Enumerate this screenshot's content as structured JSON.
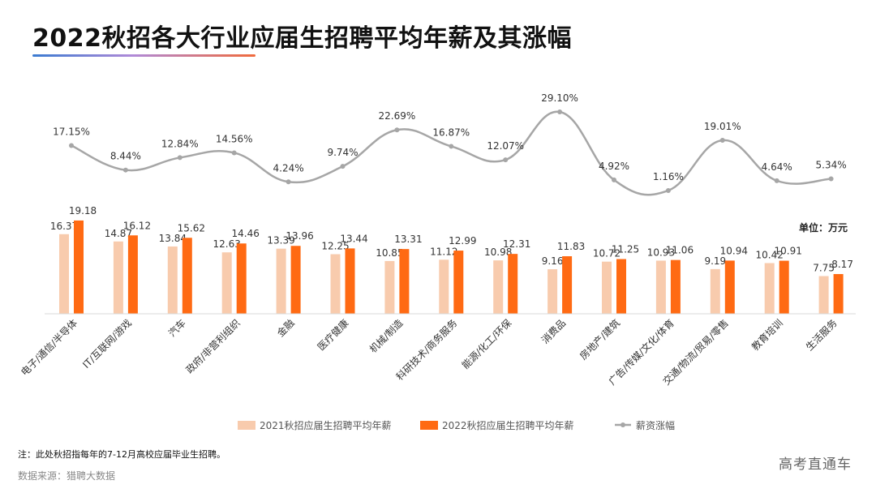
{
  "title": "2022秋招各大行业应届生招聘平均年薪及其涨幅",
  "note": "注：此处秋招指每年的7-12月高校应届毕业生招聘。",
  "source": "数据来源：猎聘大数据",
  "watermark": "高考直通车",
  "unit_label": "单位：万元",
  "colors": {
    "series_2021": "#f8cbad",
    "series_2022": "#ff6a13",
    "growth_line": "#a6a6a6",
    "text": "#333333"
  },
  "chart_data": {
    "type": "bar",
    "categories": [
      "电子/通信/半导体",
      "IT/互联网/游戏",
      "汽车",
      "政府/非营利组织",
      "金融",
      "医疗健康",
      "机械/制造",
      "科研技术/商务服务",
      "能源/化工/环保",
      "消费品",
      "房地产/建筑",
      "广告/传媒/文化/体育",
      "交通/物流/贸易/零售",
      "教育培训",
      "生活服务"
    ],
    "series": [
      {
        "name": "2021秋招应届生招聘平均年薪",
        "type": "bar",
        "values": [
          16.37,
          14.87,
          13.84,
          12.63,
          13.39,
          12.25,
          10.85,
          11.12,
          10.98,
          9.16,
          10.72,
          10.93,
          9.19,
          10.42,
          7.75
        ],
        "labels": [
          "16.37",
          "14.87",
          "13.84",
          "12.63",
          "13.39",
          "12.25",
          "10.85",
          "11.12",
          "10.98",
          "9.16",
          "10.72",
          "10.93",
          "9.19",
          "10.42",
          "7.75"
        ]
      },
      {
        "name": "2022秋招应届生招聘平均年薪",
        "type": "bar",
        "values": [
          19.18,
          16.12,
          15.62,
          14.46,
          13.96,
          13.44,
          13.31,
          12.99,
          12.31,
          11.83,
          11.25,
          11.06,
          10.94,
          10.91,
          8.17
        ],
        "labels": [
          "19.18",
          "16.12",
          "15.62",
          "14.46",
          "13.96",
          "13.44",
          "13.31",
          "12.99",
          "12.31",
          "11.83",
          "11.25",
          "11.06",
          "10.94",
          "10.91",
          "8.17"
        ]
      },
      {
        "name": "薪资涨幅",
        "type": "line",
        "unit": "%",
        "values": [
          17.15,
          8.44,
          12.84,
          14.56,
          4.24,
          9.74,
          22.69,
          16.87,
          12.07,
          29.1,
          4.92,
          1.16,
          19.01,
          4.64,
          5.34
        ],
        "labels": [
          "17.15%",
          "8.44%",
          "12.84%",
          "14.56%",
          "4.24%",
          "9.74%",
          "22.69%",
          "16.87%",
          "12.07%",
          "29.10%",
          "4.92%",
          "1.16%",
          "19.01%",
          "4.64%",
          "5.34%"
        ]
      }
    ],
    "legend_position": "bottom",
    "grid": false
  }
}
